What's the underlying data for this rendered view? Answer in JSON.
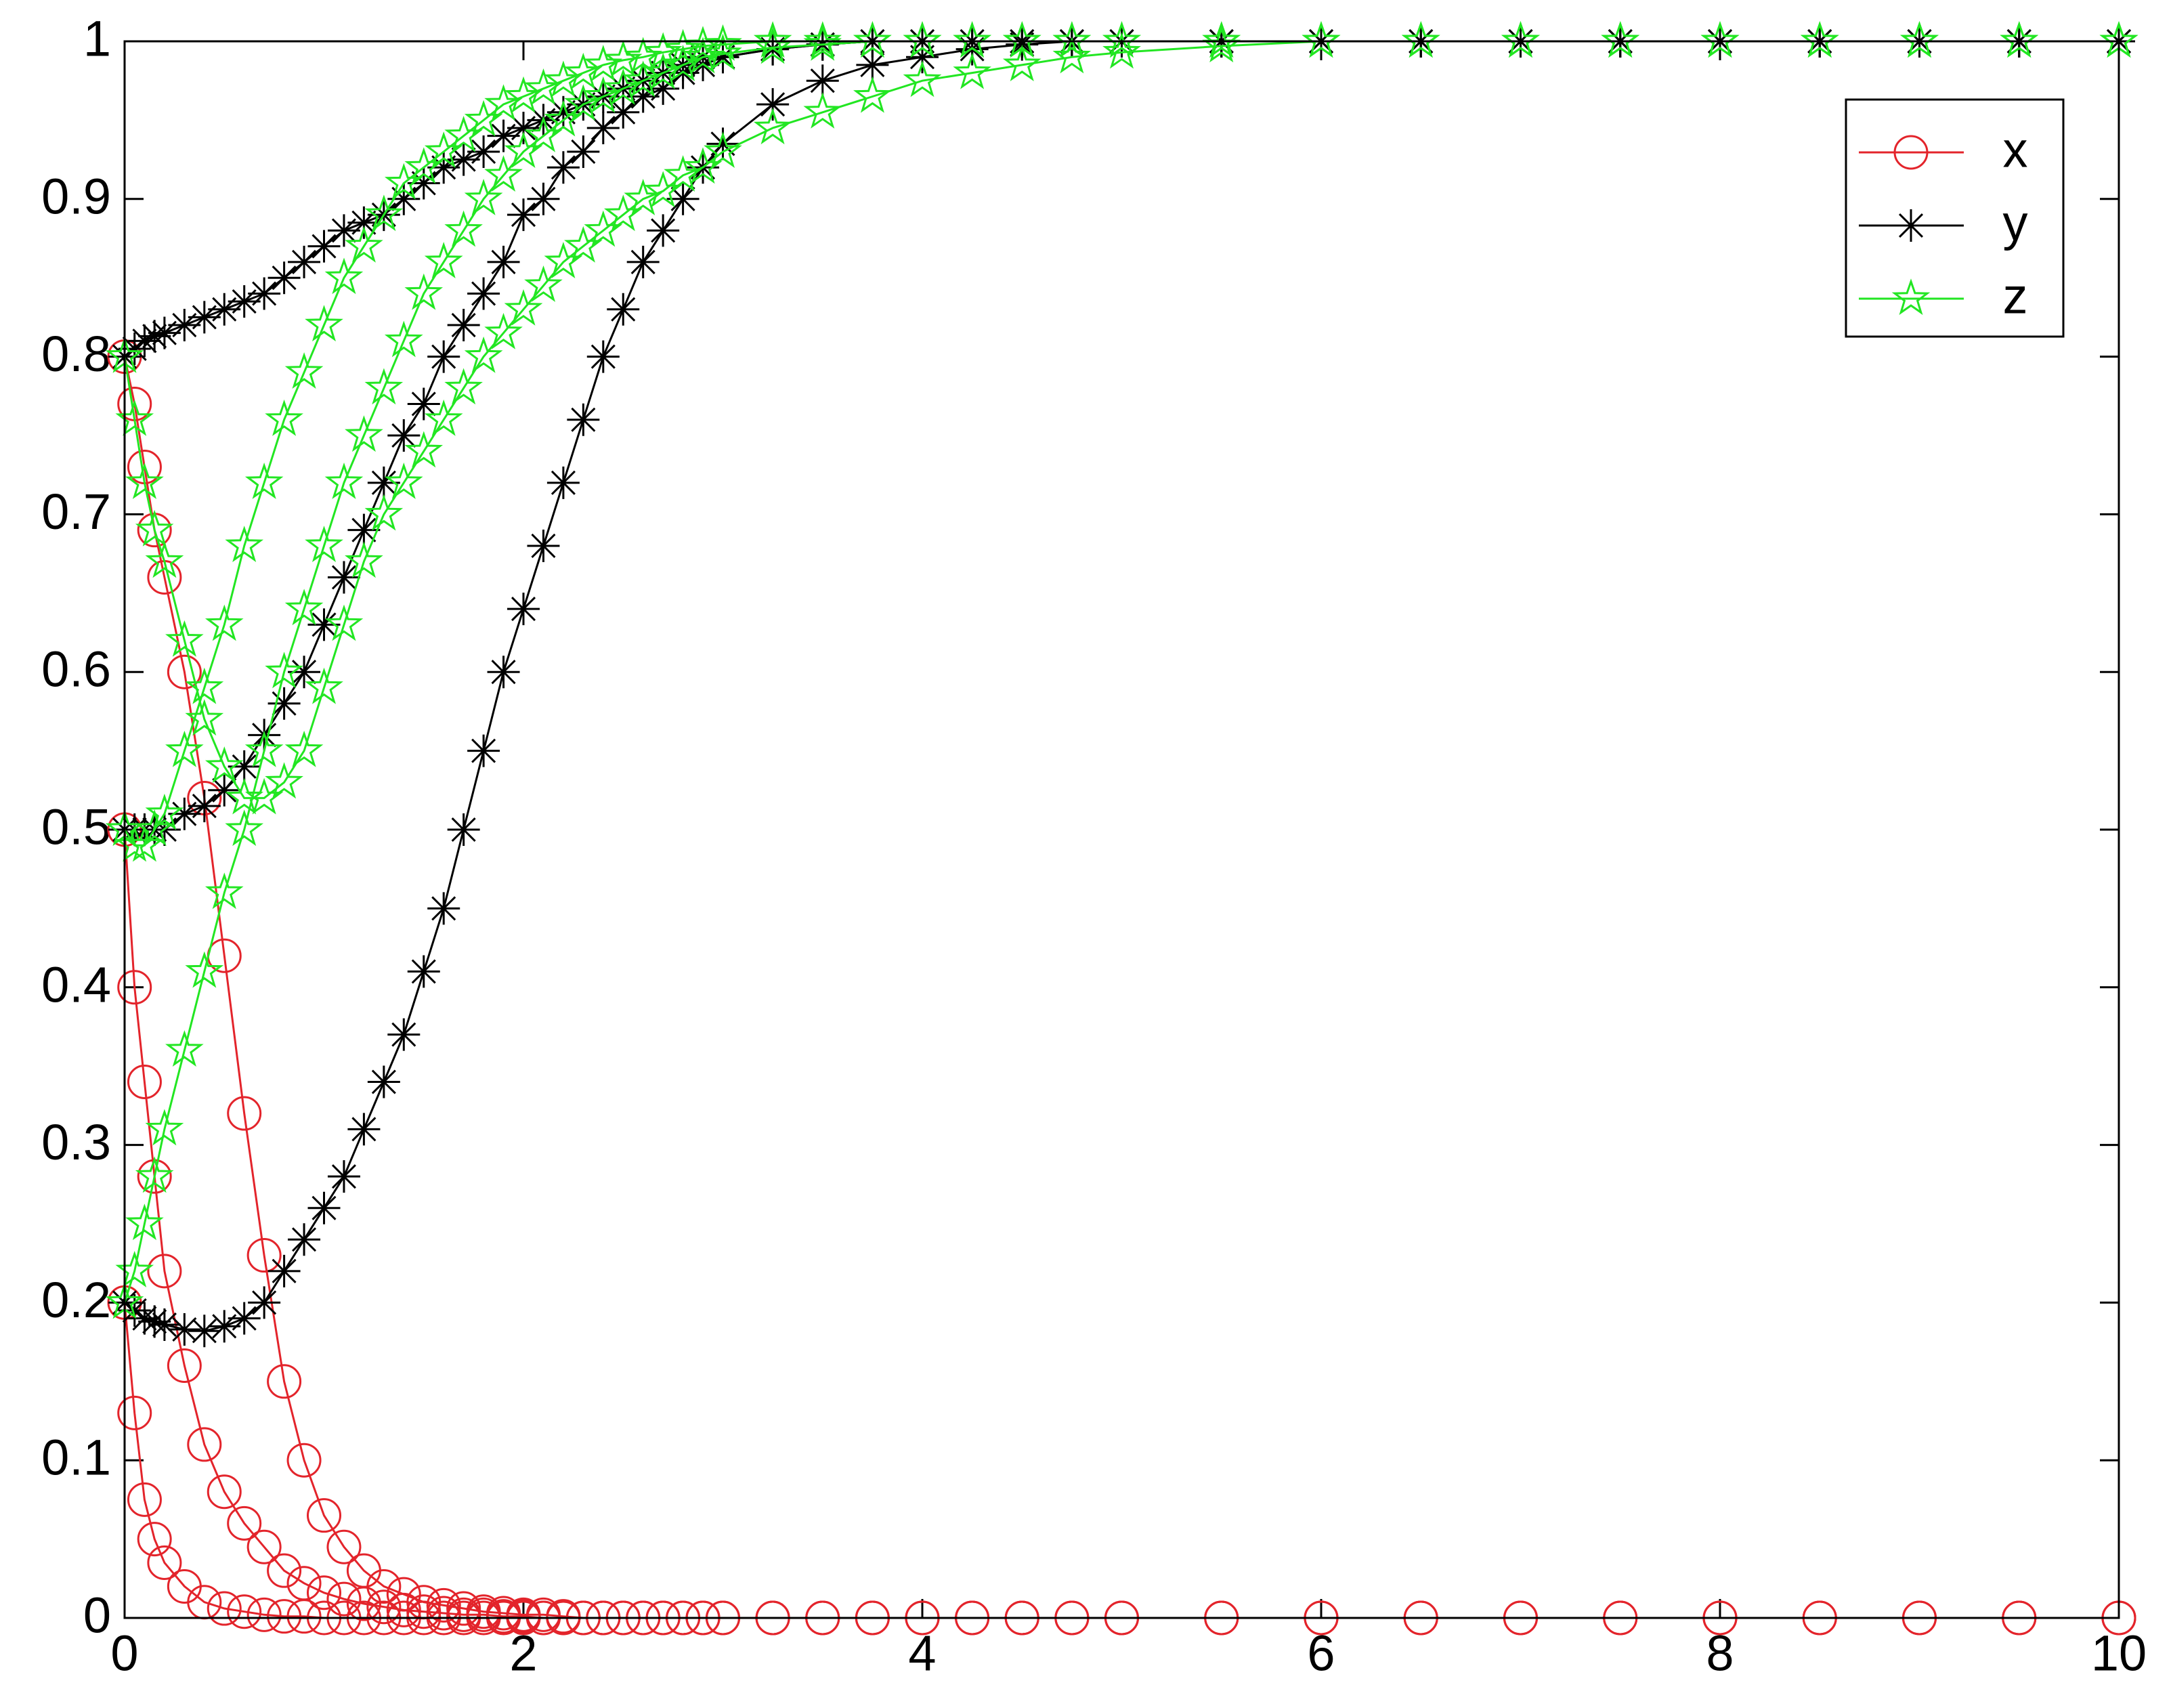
{
  "chart_data": {
    "type": "line",
    "x": [
      0,
      0.05,
      0.1,
      0.15,
      0.2,
      0.3,
      0.4,
      0.5,
      0.6,
      0.7,
      0.8,
      0.9,
      1,
      1.1,
      1.2,
      1.3,
      1.4,
      1.5,
      1.6,
      1.7,
      1.8,
      1.9,
      2,
      2.1,
      2.2,
      2.3,
      2.4,
      2.5,
      2.6,
      2.7,
      2.8,
      2.9,
      3,
      3.25,
      3.5,
      3.75,
      4,
      4.25,
      4.5,
      4.75,
      5,
      5.5,
      6,
      6.5,
      7,
      7.5,
      8,
      8.5,
      9,
      9.5,
      10
    ],
    "series": [
      {
        "name": "x",
        "color": "#e3242b",
        "marker": "circle",
        "values": [
          [
            0.8,
            0.77,
            0.73,
            0.69,
            0.66,
            0.6,
            0.52,
            0.42,
            0.32,
            0.23,
            0.15,
            0.1,
            0.065,
            0.045,
            0.03,
            0.02,
            0.015,
            0.01,
            0.008,
            0.006,
            0.004,
            0.003,
            0.002,
            0.002,
            0.001,
            0,
            0,
            0,
            0,
            0,
            0,
            0,
            0,
            0,
            0,
            0,
            0,
            0,
            0,
            0,
            0,
            0,
            0,
            0,
            0,
            0,
            0,
            0,
            0,
            0,
            0
          ],
          [
            0.5,
            0.4,
            0.34,
            0.28,
            0.22,
            0.16,
            0.11,
            0.08,
            0.06,
            0.045,
            0.03,
            0.022,
            0.016,
            0.012,
            0.009,
            0.007,
            0.005,
            0.004,
            0.003,
            0.002,
            0.002,
            0.001,
            0.001,
            0,
            0,
            0,
            0,
            0,
            0,
            0,
            0,
            0,
            0,
            0,
            0,
            0,
            0,
            0,
            0,
            0,
            0,
            0,
            0,
            0,
            0,
            0,
            0,
            0,
            0,
            0,
            0
          ],
          [
            0.2,
            0.13,
            0.075,
            0.05,
            0.035,
            0.02,
            0.01,
            0.006,
            0.004,
            0.002,
            0.001,
            0.001,
            0,
            0,
            0,
            0,
            0,
            0,
            0,
            0,
            0,
            0,
            0,
            0,
            0,
            0,
            0,
            0,
            0,
            0,
            0,
            0,
            0,
            0,
            0,
            0,
            0,
            0,
            0,
            0,
            0,
            0,
            0,
            0,
            0,
            0,
            0,
            0,
            0,
            0,
            0
          ]
        ]
      },
      {
        "name": "y",
        "color": "#000000",
        "marker": "asterisk",
        "values": [
          [
            0.8,
            0.805,
            0.81,
            0.813,
            0.815,
            0.82,
            0.825,
            0.83,
            0.835,
            0.84,
            0.85,
            0.86,
            0.87,
            0.88,
            0.885,
            0.89,
            0.9,
            0.91,
            0.92,
            0.925,
            0.93,
            0.94,
            0.945,
            0.95,
            0.955,
            0.96,
            0.965,
            0.97,
            0.975,
            0.98,
            0.985,
            0.99,
            0.99,
            0.995,
            0.998,
            1,
            1,
            1,
            1,
            1,
            1,
            1,
            1,
            1,
            1,
            1,
            1,
            1,
            1,
            1,
            1
          ],
          [
            0.5,
            0.5,
            0.5,
            0.5,
            0.5,
            0.51,
            0.515,
            0.525,
            0.54,
            0.56,
            0.58,
            0.6,
            0.63,
            0.66,
            0.69,
            0.72,
            0.75,
            0.77,
            0.8,
            0.82,
            0.84,
            0.86,
            0.89,
            0.9,
            0.92,
            0.93,
            0.945,
            0.955,
            0.965,
            0.97,
            0.98,
            0.985,
            0.99,
            0.995,
            0.998,
            1,
            1,
            1,
            1,
            1,
            1,
            1,
            1,
            1,
            1,
            1,
            1,
            1,
            1,
            1,
            1
          ],
          [
            0.2,
            0.195,
            0.19,
            0.188,
            0.186,
            0.183,
            0.182,
            0.185,
            0.19,
            0.2,
            0.22,
            0.24,
            0.26,
            0.28,
            0.31,
            0.34,
            0.37,
            0.41,
            0.45,
            0.5,
            0.55,
            0.6,
            0.64,
            0.68,
            0.72,
            0.76,
            0.8,
            0.83,
            0.86,
            0.88,
            0.9,
            0.92,
            0.935,
            0.96,
            0.975,
            0.985,
            0.99,
            0.995,
            0.998,
            1,
            1,
            1,
            1,
            1,
            1,
            1,
            1,
            1,
            1,
            1,
            1
          ]
        ]
      },
      {
        "name": "z",
        "color": "#22e622",
        "marker": "pentagram",
        "values": [
          [
            0.8,
            0.76,
            0.72,
            0.69,
            0.67,
            0.62,
            0.57,
            0.54,
            0.52,
            0.52,
            0.53,
            0.55,
            0.59,
            0.63,
            0.67,
            0.7,
            0.72,
            0.74,
            0.76,
            0.78,
            0.8,
            0.815,
            0.83,
            0.845,
            0.86,
            0.87,
            0.88,
            0.89,
            0.9,
            0.905,
            0.915,
            0.92,
            0.93,
            0.945,
            0.955,
            0.965,
            0.975,
            0.98,
            0.985,
            0.99,
            0.993,
            0.997,
            1,
            1,
            1,
            1,
            1,
            1,
            1,
            1,
            1
          ],
          [
            0.5,
            0.49,
            0.49,
            0.5,
            0.51,
            0.55,
            0.59,
            0.63,
            0.68,
            0.72,
            0.76,
            0.79,
            0.82,
            0.85,
            0.87,
            0.89,
            0.91,
            0.92,
            0.93,
            0.94,
            0.95,
            0.96,
            0.965,
            0.97,
            0.975,
            0.98,
            0.985,
            0.988,
            0.99,
            0.993,
            0.995,
            0.997,
            0.998,
            1,
            1,
            1,
            1,
            1,
            1,
            1,
            1,
            1,
            1,
            1,
            1,
            1,
            1,
            1,
            1,
            1,
            1
          ],
          [
            0.2,
            0.22,
            0.25,
            0.28,
            0.31,
            0.36,
            0.41,
            0.46,
            0.5,
            0.55,
            0.6,
            0.64,
            0.68,
            0.72,
            0.75,
            0.78,
            0.81,
            0.84,
            0.86,
            0.88,
            0.9,
            0.915,
            0.93,
            0.94,
            0.95,
            0.96,
            0.965,
            0.97,
            0.975,
            0.98,
            0.985,
            0.99,
            0.992,
            0.996,
            0.998,
            1,
            1,
            1,
            1,
            1,
            1,
            1,
            1,
            1,
            1,
            1,
            1,
            1,
            1,
            1,
            1
          ]
        ]
      }
    ],
    "xlim": [
      0,
      10
    ],
    "xticks": [
      0,
      2,
      4,
      6,
      8,
      10
    ],
    "ylim": [
      0,
      1
    ],
    "yticks": [
      0,
      0.1,
      0.2,
      0.3,
      0.4,
      0.5,
      0.6,
      0.7,
      0.8,
      0.9,
      1
    ],
    "grid": false,
    "legend": "northeast"
  }
}
